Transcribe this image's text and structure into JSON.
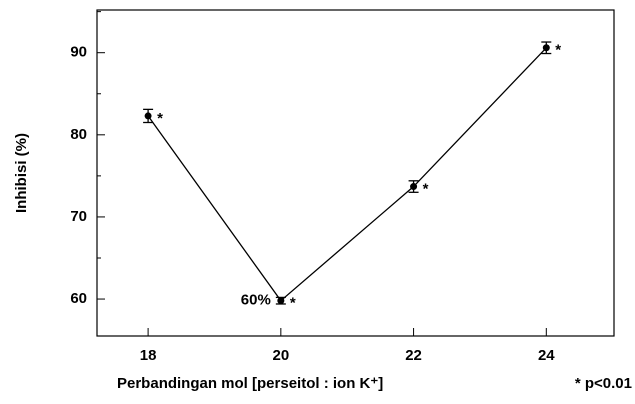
{
  "chart_data": {
    "type": "line",
    "x_label": "Perbandingan mol [perseitol : ion K⁺]",
    "y_label": "Inhibisi (%)",
    "x": [
      18,
      20,
      22,
      24
    ],
    "values": [
      82.3,
      59.8,
      73.7,
      90.6
    ],
    "errors": [
      0.8,
      0.4,
      0.7,
      0.7
    ],
    "color": "#000000",
    "significance_marks": [
      "*",
      "*",
      "*",
      "*"
    ],
    "annotation": {
      "text": "60%",
      "point": 1
    },
    "footnote": "* p<0.01",
    "xlim": [
      17.23,
      25.02
    ],
    "xticks": [
      18,
      20,
      22,
      24
    ],
    "ylim": [
      55.5,
      95.2
    ],
    "yticks": [
      60,
      70,
      80,
      90
    ],
    "yminor_ticks": [
      65,
      75,
      85,
      95
    ],
    "grid": false
  }
}
